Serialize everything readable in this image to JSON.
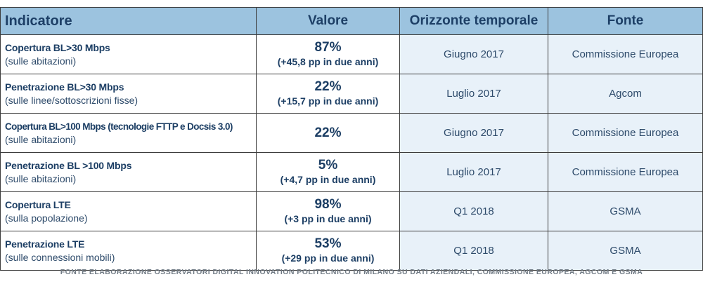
{
  "header": {
    "indicatore": "Indicatore",
    "valore": "Valore",
    "orizzonte": "Orizzonte temporale",
    "fonte": "Fonte"
  },
  "rows": [
    {
      "main": "Copertura BL>30 Mbps",
      "sub": "(sulle abitazioni)",
      "pct": "87%",
      "delta": "(+45,8 pp in due anni)",
      "orizzonte": "Giugno 2017",
      "fonte": "Commissione Europea"
    },
    {
      "main": "Penetrazione BL>30 Mbps",
      "sub": "(sulle linee/sottoscrizioni fisse)",
      "pct": "22%",
      "delta": "(+15,7 pp in due anni)",
      "orizzonte": "Luglio 2017",
      "fonte": "Agcom"
    },
    {
      "main": "Copertura BL>100 Mbps  (tecnologie FTTP e Docsis 3.0)",
      "sub": "(sulle abitazioni)",
      "pct": "22%",
      "delta": "",
      "orizzonte": "Giugno 2017",
      "fonte": "Commissione Europea"
    },
    {
      "main": "Penetrazione BL >100 Mbps",
      "sub": "(sulle abitazioni)",
      "pct": "5%",
      "delta": "(+4,7 pp in due anni)",
      "orizzonte": "Luglio 2017",
      "fonte": "Commissione Europea"
    },
    {
      "main": "Copertura LTE",
      "sub": "(sulla popolazione)",
      "pct": "98%",
      "delta": "(+3 pp in due anni)",
      "orizzonte": "Q1 2018",
      "fonte": "GSMA"
    },
    {
      "main": "Penetrazione LTE",
      "sub": "(sulle connessioni mobili)",
      "pct": "53%",
      "delta": "(+29 pp in due anni)",
      "orizzonte": "Q1 2018",
      "fonte": "GSMA"
    }
  ],
  "source": "FONTE ELABORAZIONE OSSERVATORI DIGITAL INNOVATION POLITECNICO DI MILANO SU DATI AZIENDALI, COMMISSIONE EUROPEA, AGCOM E GSMA",
  "colors": {
    "header_bg": "#9cc3df",
    "shaded_bg": "#e8f1f9",
    "text": "#1c3e64"
  }
}
